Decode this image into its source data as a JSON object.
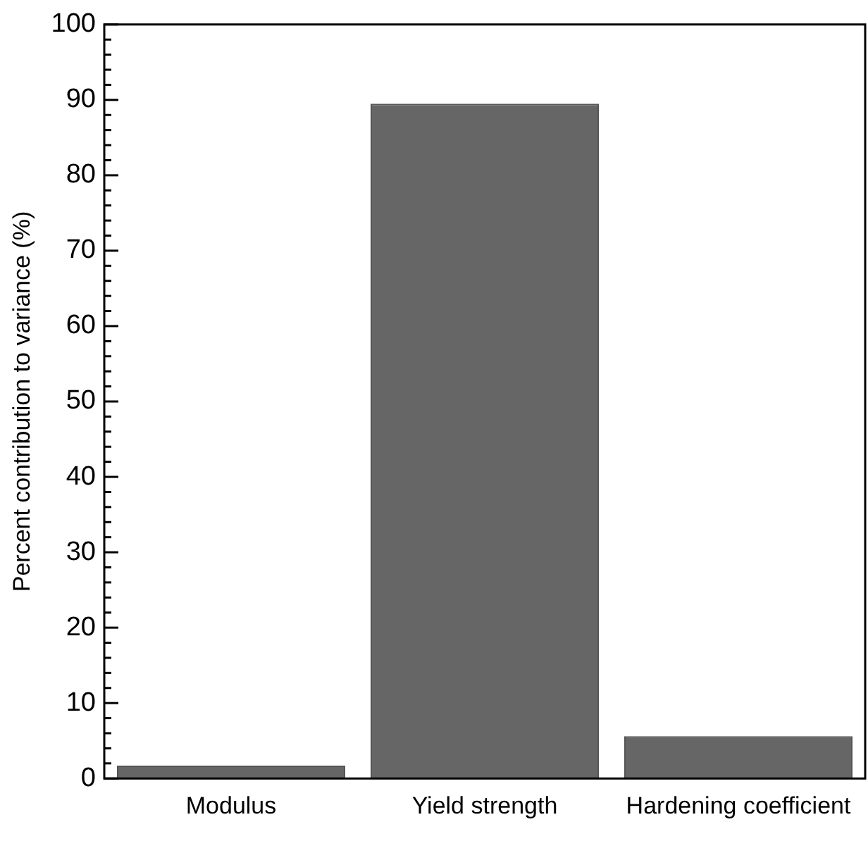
{
  "chart_data": {
    "type": "bar",
    "ylabel": "Percent contribution to variance (%)",
    "categories": [
      "Modulus",
      "Yield strength",
      "Hardening coefficient"
    ],
    "values": [
      1.7,
      89.5,
      5.6
    ],
    "color": "#666666",
    "ylim": [
      0,
      100
    ],
    "yticks": [
      0,
      {
        "value": 2,
        "label": null
      },
      {
        "value": 4,
        "label": null
      },
      {
        "value": 6,
        "label": null
      },
      {
        "value": 8,
        "label": null
      },
      10,
      {
        "value": 12,
        "label": null
      },
      {
        "value": 14,
        "label": null
      },
      {
        "value": 16,
        "label": null
      },
      {
        "value": 18,
        "label": null
      },
      20,
      {
        "value": 22,
        "label": null
      },
      {
        "value": 24,
        "label": null
      },
      {
        "value": 26,
        "label": null
      },
      {
        "value": 28,
        "label": null
      },
      30,
      {
        "value": 32,
        "label": null
      },
      {
        "value": 34,
        "label": null
      },
      {
        "value": 36,
        "label": null
      },
      {
        "value": 38,
        "label": null
      },
      40,
      {
        "value": 42,
        "label": null
      },
      {
        "value": 44,
        "label": null
      },
      {
        "value": 46,
        "label": null
      },
      {
        "value": 48,
        "label": null
      },
      50,
      {
        "value": 52,
        "label": null
      },
      {
        "value": 54,
        "label": null
      },
      {
        "value": 56,
        "label": null
      },
      {
        "value": 58,
        "label": null
      },
      60,
      {
        "value": 62,
        "label": null
      },
      {
        "value": 64,
        "label": null
      },
      {
        "value": 66,
        "label": null
      },
      {
        "value": 68,
        "label": null
      },
      70,
      {
        "value": 72,
        "label": null
      },
      {
        "value": 74,
        "label": null
      },
      {
        "value": 76,
        "label": null
      },
      {
        "value": 78,
        "label": null
      },
      80,
      {
        "value": 82,
        "label": null
      },
      {
        "value": 84,
        "label": null
      },
      {
        "value": 86,
        "label": null
      },
      {
        "value": 88,
        "label": null
      },
      90,
      {
        "value": 92,
        "label": null
      },
      {
        "value": 94,
        "label": null
      },
      {
        "value": 96,
        "label": null
      },
      {
        "value": 98,
        "label": null
      },
      100
    ],
    "grid": false,
    "legend": false
  }
}
